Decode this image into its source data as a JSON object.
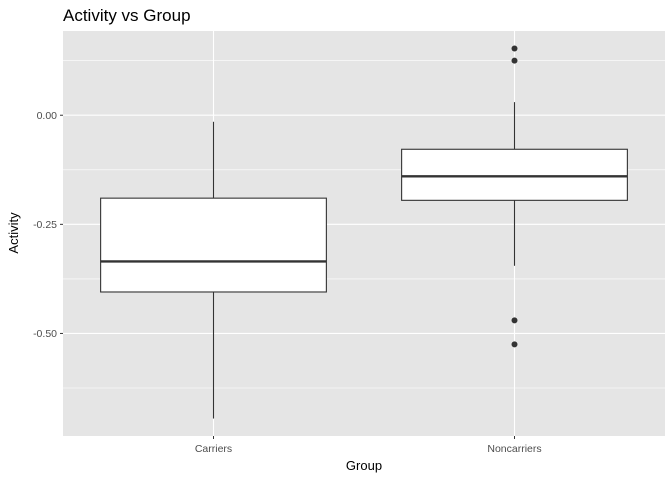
{
  "chart_data": {
    "type": "boxplot",
    "title": "Activity vs Group",
    "xlabel": "Group",
    "ylabel": "Activity",
    "categories": [
      "Carriers",
      "Noncarriers"
    ],
    "y_ticks": [
      0.0,
      -0.25,
      -0.5
    ],
    "y_tick_labels": [
      "0.00",
      "-0.25",
      "-0.50"
    ],
    "ylim": [
      -0.735,
      0.193
    ],
    "grid": true,
    "boxes": [
      {
        "category": "Carriers",
        "whisker_low": -0.695,
        "q1": -0.405,
        "median": -0.335,
        "q3": -0.19,
        "whisker_high": -0.015,
        "outliers": []
      },
      {
        "category": "Noncarriers",
        "whisker_low": -0.345,
        "q1": -0.195,
        "median": -0.14,
        "q3": -0.078,
        "whisker_high": 0.03,
        "outliers": [
          0.153,
          0.125,
          -0.47,
          -0.525
        ]
      }
    ],
    "colors": {
      "panel": "#e5e5e5",
      "grid": "#ffffff",
      "box_fill": "#ffffff",
      "box_stroke": "#333333",
      "point": "#333333"
    }
  }
}
